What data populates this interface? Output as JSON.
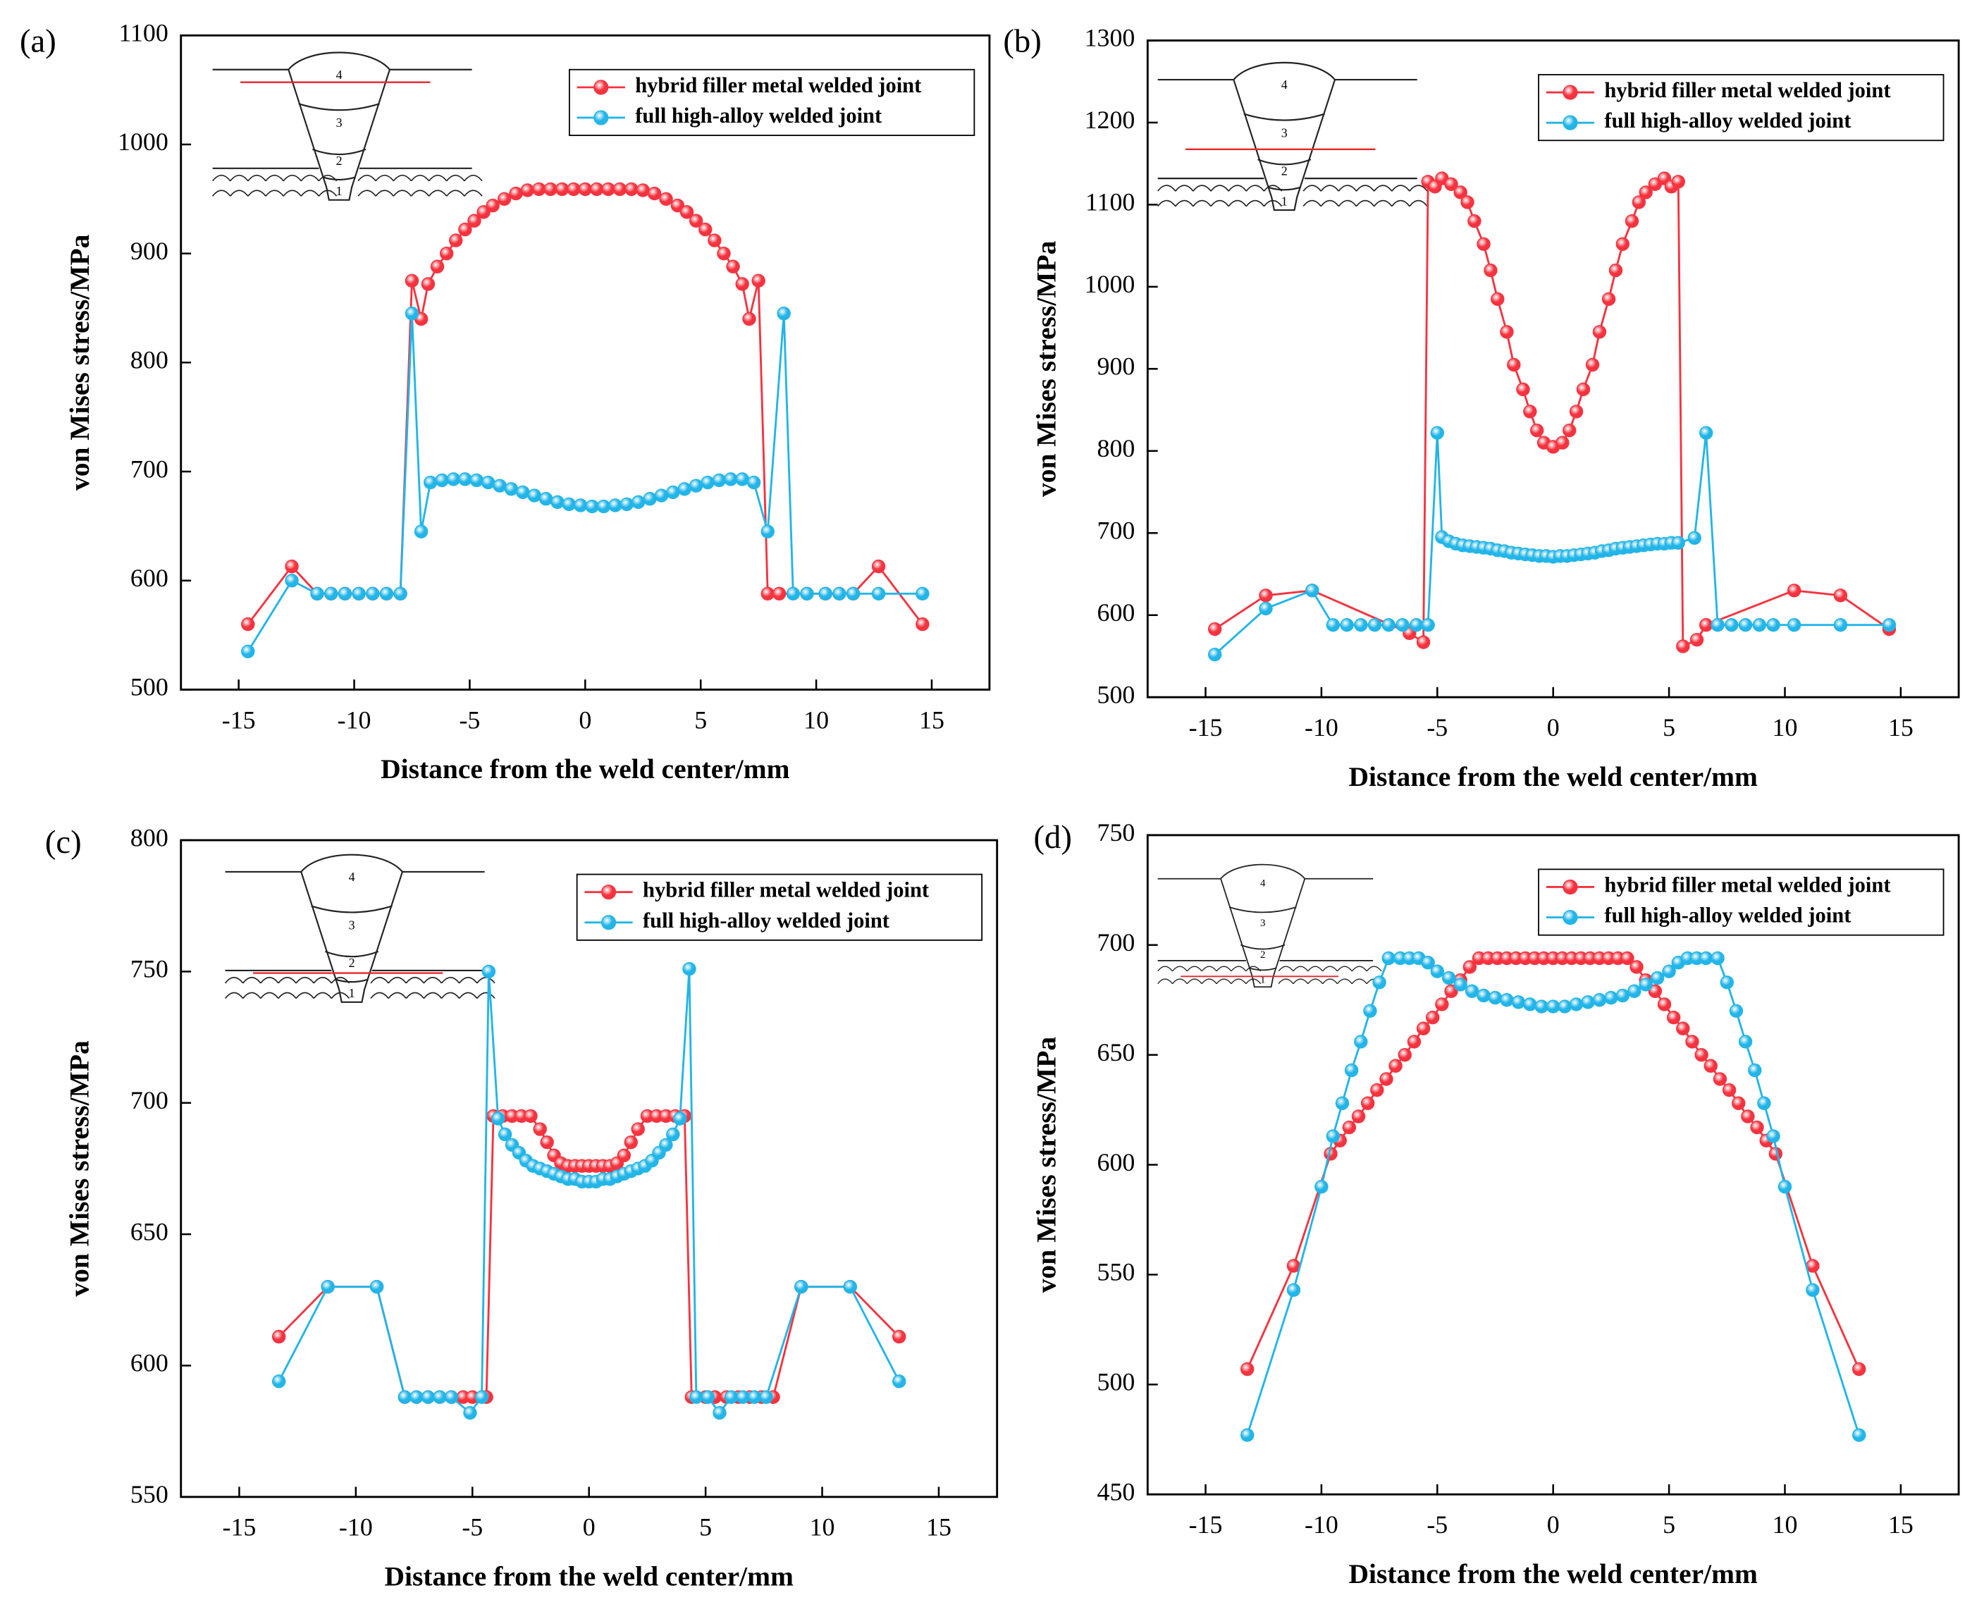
{
  "chart_data": [
    {
      "type": "line",
      "panel_label": "(a)",
      "x_label": "Distance from the weld center/mm",
      "y_label": "von Mises stress/MPa",
      "xlim": [
        -17.5,
        17.5
      ],
      "ylim": [
        500,
        1100
      ],
      "xticks": [
        -15,
        -10,
        -5,
        0,
        5,
        10,
        15
      ],
      "yticks": [
        500,
        600,
        700,
        800,
        900,
        1000,
        1100
      ],
      "legend": "upper right",
      "inset_labels": [
        "4",
        "3",
        "2",
        "1"
      ],
      "series": [
        {
          "name": "hybrid filler metal welded joint",
          "color": "#f5333f",
          "x": [
            -14.6,
            -12.7,
            -11.6,
            -11,
            -10.4,
            -9.8,
            -9.2,
            -8.6,
            -8,
            -7.5,
            -7.1,
            -6.8,
            -6.4,
            -6,
            -5.6,
            -5.2,
            -4.8,
            -4.4,
            -4,
            -3.5,
            -3,
            -2.5,
            -2,
            -1.5,
            -1,
            -0.5,
            0,
            0.5,
            1,
            1.5,
            2,
            2.5,
            3,
            3.5,
            4,
            4.4,
            4.8,
            5.2,
            5.6,
            6,
            6.4,
            6.8,
            7.1,
            7.5,
            7.9,
            8.4,
            9.6,
            10.4,
            11,
            11.6,
            12.7,
            14.6
          ],
          "values": [
            560,
            613,
            588,
            588,
            588,
            588,
            588,
            588,
            588,
            875,
            840,
            872,
            888,
            900,
            912,
            922,
            930,
            938,
            944,
            950,
            955,
            958,
            959,
            959,
            959,
            959,
            959,
            959,
            959,
            959,
            959,
            958,
            955,
            950,
            944,
            938,
            930,
            922,
            912,
            900,
            888,
            872,
            840,
            875,
            588,
            588,
            588,
            588,
            588,
            588,
            613,
            560
          ]
        },
        {
          "name": "full high-alloy welded joint",
          "color": "#22b5e8",
          "x": [
            -14.6,
            -12.7,
            -11.6,
            -11,
            -10.4,
            -9.8,
            -9.2,
            -8.6,
            -8,
            -7.5,
            -7.1,
            -6.7,
            -6.2,
            -5.7,
            -5.2,
            -4.7,
            -4.2,
            -3.7,
            -3.2,
            -2.7,
            -2.2,
            -1.7,
            -1.2,
            -0.7,
            -0.2,
            0.3,
            0.8,
            1.3,
            1.8,
            2.3,
            2.8,
            3.3,
            3.8,
            4.3,
            4.8,
            5.3,
            5.8,
            6.3,
            6.8,
            7.3,
            7.9,
            8.6,
            9,
            9.6,
            10.4,
            11,
            11.6,
            12.7,
            14.6
          ],
          "values": [
            535,
            600,
            588,
            588,
            588,
            588,
            588,
            588,
            588,
            845,
            645,
            690,
            692,
            693,
            693,
            692,
            690,
            687,
            684,
            681,
            678,
            675,
            672,
            670,
            669,
            668,
            668,
            669,
            670,
            672,
            675,
            678,
            681,
            684,
            687,
            690,
            692,
            693,
            693,
            690,
            645,
            845,
            588,
            588,
            588,
            588,
            588,
            588,
            588
          ]
        }
      ]
    },
    {
      "type": "line",
      "panel_label": "(b)",
      "x_label": "Distance from the weld center/mm",
      "y_label": "von Mises stress/MPa",
      "xlim": [
        -17.5,
        17.5
      ],
      "ylim": [
        500,
        1300
      ],
      "xticks": [
        -15,
        -10,
        -5,
        0,
        5,
        10,
        15
      ],
      "yticks": [
        500,
        600,
        700,
        800,
        900,
        1000,
        1100,
        1200,
        1300
      ],
      "legend": "upper right",
      "inset_labels": [
        "4",
        "3",
        "2",
        "1"
      ],
      "series": [
        {
          "name": "hybrid filler metal welded joint",
          "color": "#f5333f",
          "x": [
            -14.6,
            -12.4,
            -10.4,
            -6.2,
            -5.6,
            -5.4,
            -5.1,
            -4.8,
            -4.4,
            -4,
            -3.7,
            -3.4,
            -3,
            -2.7,
            -2.4,
            -2,
            -1.7,
            -1.3,
            -1,
            -0.7,
            -0.4,
            0,
            0.4,
            0.7,
            1,
            1.3,
            1.7,
            2,
            2.4,
            2.7,
            3,
            3.4,
            3.7,
            4,
            4.4,
            4.8,
            5.1,
            5.4,
            5.6,
            6.2,
            6.6,
            10.4,
            12.4,
            14.5
          ],
          "values": [
            583,
            624,
            630,
            578,
            567,
            1128,
            1122,
            1132,
            1125,
            1115,
            1103,
            1080,
            1052,
            1020,
            985,
            945,
            905,
            875,
            848,
            825,
            810,
            805,
            810,
            825,
            848,
            875,
            905,
            945,
            985,
            1020,
            1052,
            1080,
            1103,
            1115,
            1125,
            1132,
            1122,
            1128,
            562,
            570,
            588,
            630,
            624,
            583
          ]
        },
        {
          "name": "full high-alloy welded joint",
          "color": "#22b5e8",
          "x": [
            -14.6,
            -12.4,
            -10.4,
            -9.5,
            -8.9,
            -8.3,
            -7.7,
            -7.1,
            -6.5,
            -5.9,
            -5.4,
            -5,
            -4.8,
            -4.5,
            -4.2,
            -3.9,
            -3.6,
            -3.3,
            -3,
            -2.7,
            -2.4,
            -2.1,
            -1.8,
            -1.5,
            -1.2,
            -0.9,
            -0.6,
            -0.3,
            0,
            0.3,
            0.6,
            0.9,
            1.2,
            1.5,
            1.8,
            2.1,
            2.4,
            2.7,
            3,
            3.3,
            3.6,
            3.9,
            4.2,
            4.5,
            4.8,
            5.1,
            5.4,
            6.1,
            6.6,
            7.1,
            7.7,
            8.3,
            8.9,
            9.5,
            10.4,
            12.4,
            14.5
          ],
          "values": [
            552,
            608,
            630,
            588,
            588,
            588,
            588,
            588,
            588,
            588,
            588,
            822,
            695,
            690,
            687,
            685,
            684,
            683,
            682,
            681,
            679,
            678,
            676,
            675,
            674,
            673,
            672,
            672,
            671,
            672,
            672,
            673,
            674,
            675,
            676,
            678,
            679,
            681,
            682,
            683,
            684,
            685,
            686,
            687,
            687,
            688,
            688,
            694,
            822,
            588,
            588,
            588,
            588,
            588,
            588,
            588,
            588
          ]
        }
      ]
    },
    {
      "type": "line",
      "panel_label": "(c)",
      "x_label": "Distance from the weld center/mm",
      "y_label": "von Mises stress/MPa",
      "xlim": [
        -17.5,
        17.5
      ],
      "ylim": [
        550,
        800
      ],
      "xticks": [
        -15,
        -10,
        -5,
        0,
        5,
        10,
        15
      ],
      "yticks": [
        550,
        600,
        650,
        700,
        750,
        800
      ],
      "legend": "upper right",
      "inset_labels": [
        "4",
        "3",
        "2",
        "1"
      ],
      "series": [
        {
          "name": "hybrid filler metal welded joint",
          "color": "#f5333f",
          "x": [
            -13.3,
            -11.2,
            -9.1,
            -7.9,
            -7.4,
            -6.9,
            -6.4,
            -5.9,
            -5.4,
            -5,
            -4.4,
            -4.1,
            -3.7,
            -3.3,
            -2.9,
            -2.5,
            -2.1,
            -1.8,
            -1.5,
            -1.2,
            -0.9,
            -0.6,
            -0.3,
            0,
            0.3,
            0.6,
            0.9,
            1.2,
            1.5,
            1.8,
            2.1,
            2.5,
            2.9,
            3.3,
            3.7,
            4.1,
            4.4,
            5,
            5.4,
            5.9,
            6.4,
            6.9,
            7.4,
            7.9,
            9.1,
            11.2,
            13.3
          ],
          "values": [
            611,
            630,
            630,
            588,
            588,
            588,
            588,
            588,
            588,
            588,
            588,
            695,
            695,
            695,
            695,
            695,
            690,
            685,
            680,
            677,
            676,
            676,
            676,
            676,
            676,
            676,
            676,
            677,
            680,
            685,
            690,
            695,
            695,
            695,
            695,
            695,
            588,
            588,
            588,
            588,
            588,
            588,
            588,
            588,
            630,
            630,
            611
          ]
        },
        {
          "name": "full high-alloy welded joint",
          "color": "#22b5e8",
          "x": [
            -13.3,
            -11.2,
            -9.1,
            -7.9,
            -7.4,
            -6.9,
            -6.4,
            -5.9,
            -5.1,
            -4.6,
            -4.3,
            -3.9,
            -3.6,
            -3.3,
            -3,
            -2.7,
            -2.4,
            -2.1,
            -1.8,
            -1.5,
            -1.2,
            -0.9,
            -0.6,
            -0.3,
            0,
            0.3,
            0.6,
            0.9,
            1.2,
            1.5,
            1.8,
            2.1,
            2.4,
            2.7,
            3,
            3.3,
            3.6,
            3.9,
            4.3,
            4.6,
            5.1,
            5.6,
            6.1,
            6.6,
            7.1,
            7.6,
            9.1,
            11.2,
            13.3
          ],
          "values": [
            594,
            630,
            630,
            588,
            588,
            588,
            588,
            588,
            582,
            588,
            750,
            694,
            688,
            684,
            681,
            678,
            676,
            675,
            674,
            673,
            672,
            671,
            671,
            670,
            670,
            670,
            671,
            671,
            672,
            673,
            674,
            675,
            676,
            678,
            681,
            684,
            688,
            694,
            751,
            588,
            588,
            582,
            588,
            588,
            588,
            588,
            630,
            630,
            594
          ]
        }
      ]
    },
    {
      "type": "line",
      "panel_label": "(d)",
      "x_label": "Distance from the weld center/mm",
      "y_label": "von Mises stress/MPa",
      "xlim": [
        -17.5,
        17.5
      ],
      "ylim": [
        450,
        750
      ],
      "xticks": [
        -15,
        -10,
        -5,
        0,
        5,
        10,
        15
      ],
      "yticks": [
        450,
        500,
        550,
        600,
        650,
        700,
        750
      ],
      "legend": "upper right",
      "inset_labels": [
        "4",
        "3",
        "2",
        "1"
      ],
      "series": [
        {
          "name": "hybrid filler metal welded joint",
          "color": "#f5333f",
          "x": [
            -13.2,
            -11.2,
            -9.6,
            -9.2,
            -8.8,
            -8.4,
            -8,
            -7.6,
            -7.2,
            -6.8,
            -6.4,
            -6,
            -5.6,
            -5.2,
            -4.8,
            -4.4,
            -4,
            -3.6,
            -3.2,
            -2.8,
            -2.4,
            -2,
            -1.6,
            -1.2,
            -0.8,
            -0.4,
            0,
            0.4,
            0.8,
            1.2,
            1.6,
            2,
            2.4,
            2.8,
            3.2,
            3.6,
            4,
            4.4,
            4.8,
            5.2,
            5.6,
            6,
            6.4,
            6.8,
            7.2,
            7.6,
            8,
            8.4,
            8.8,
            9.2,
            9.6,
            11.2,
            13.2
          ],
          "values": [
            507,
            554,
            605,
            611,
            617,
            622,
            628,
            634,
            639,
            645,
            650,
            656,
            662,
            667,
            673,
            679,
            684,
            690,
            694,
            694,
            694,
            694,
            694,
            694,
            694,
            694,
            694,
            694,
            694,
            694,
            694,
            694,
            694,
            694,
            694,
            690,
            684,
            679,
            673,
            667,
            662,
            656,
            650,
            645,
            639,
            634,
            628,
            622,
            617,
            611,
            605,
            554,
            507
          ]
        },
        {
          "name": "full high-alloy welded joint",
          "color": "#22b5e8",
          "x": [
            -13.2,
            -11.2,
            -10,
            -9.5,
            -9.1,
            -8.7,
            -8.3,
            -7.9,
            -7.5,
            -7.1,
            -6.6,
            -6.2,
            -5.8,
            -5.4,
            -5,
            -4.5,
            -4,
            -3.5,
            -3,
            -2.5,
            -2,
            -1.5,
            -1,
            -0.5,
            0,
            0.5,
            1,
            1.5,
            2,
            2.5,
            3,
            3.5,
            4,
            4.5,
            5,
            5.4,
            5.8,
            6.2,
            6.6,
            7.1,
            7.5,
            7.9,
            8.3,
            8.7,
            9.1,
            9.5,
            10,
            11.2,
            13.2
          ],
          "values": [
            477,
            543,
            590,
            613,
            628,
            643,
            656,
            670,
            683,
            694,
            694,
            694,
            694,
            692,
            688,
            685,
            682,
            679,
            677,
            676,
            675,
            674,
            673,
            672,
            672,
            672,
            673,
            674,
            675,
            676,
            677,
            679,
            682,
            685,
            688,
            692,
            694,
            694,
            694,
            694,
            683,
            670,
            656,
            643,
            628,
            613,
            590,
            543,
            477
          ]
        }
      ]
    }
  ]
}
